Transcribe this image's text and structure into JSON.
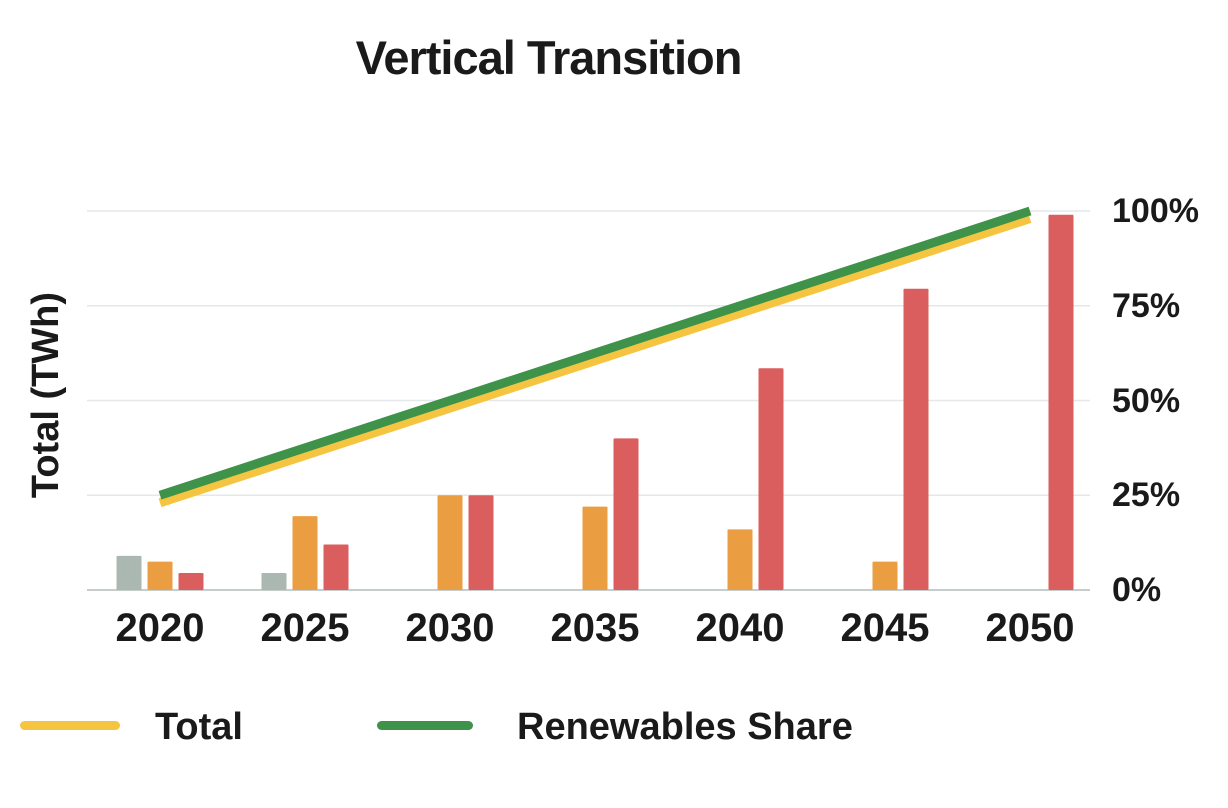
{
  "title": "Vertical Transition",
  "left_axis_label": "Total (TWh)",
  "legend": [
    {
      "label": "Total",
      "color": "#f5c541"
    },
    {
      "label": "Renewables Share",
      "color": "#3f9249"
    }
  ],
  "style": {
    "background": "#ffffff",
    "text_color": "#1a1a1a",
    "grid_color": "#e4e8ea",
    "axis_line_color": "#c7cccd"
  },
  "chart_data": {
    "type": "bar+line combo",
    "title": "Vertical Transition",
    "x_categories": [
      "2020",
      "2025",
      "2030",
      "2035",
      "2040",
      "2045",
      "2050"
    ],
    "left_axis_label": "Total (TWh)",
    "right_axis": {
      "tick_values": [
        0,
        25,
        50,
        75,
        100
      ],
      "tick_labels": [
        "0%",
        "25%",
        "50%",
        "75%",
        "100%"
      ],
      "range": [
        0,
        100
      ]
    },
    "grid": "horizontal gridlines only",
    "legend_position": "bottom-left",
    "bar_series": [
      {
        "name": "gray",
        "color": "#abb8b2",
        "values_pct": [
          9,
          4.5,
          0,
          0,
          0,
          0,
          0
        ]
      },
      {
        "name": "orange",
        "color": "#eb9e41",
        "values_pct": [
          7.5,
          19.5,
          25,
          22,
          16,
          7.5,
          0
        ]
      },
      {
        "name": "red",
        "color": "#db5e5e",
        "values_pct": [
          4.5,
          12,
          25,
          40,
          58.5,
          79.5,
          99
        ]
      }
    ],
    "line_series": [
      {
        "name": "Total",
        "color": "#f5c541",
        "values_pct": [
          23,
          35.5,
          48,
          60.5,
          73,
          85.5,
          98
        ]
      },
      {
        "name": "Renewables Share",
        "color": "#3f9249",
        "values_pct": [
          25,
          37.5,
          50,
          62.5,
          75,
          87.5,
          100
        ]
      }
    ]
  }
}
